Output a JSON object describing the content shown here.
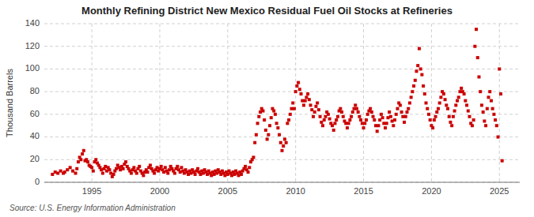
{
  "chart_data": {
    "type": "scatter",
    "title": "Monthly Refining District New Mexico Residual Fuel Oil Stocks at Refineries",
    "y_label": "Thousand Barrels",
    "source": "Source: U.S. Energy Information Administration",
    "color": "#cc0000",
    "marker": "square",
    "grid": true,
    "xlim": [
      1991.5,
      2026.5
    ],
    "ylim": [
      0,
      140
    ],
    "xticks": [
      1995,
      2000,
      2005,
      2010,
      2015,
      2020,
      2025
    ],
    "yticks": [
      0,
      20,
      40,
      60,
      80,
      100,
      120,
      140
    ],
    "x": [
      1992.1,
      1992.3,
      1992.5,
      1992.7,
      1992.9,
      1993.0,
      1993.2,
      1993.4,
      1993.6,
      1993.8,
      1993.9,
      1994.0,
      1994.1,
      1994.2,
      1994.3,
      1994.4,
      1994.5,
      1994.6,
      1994.7,
      1994.8,
      1994.9,
      1995.0,
      1995.1,
      1995.2,
      1995.3,
      1995.4,
      1995.5,
      1995.6,
      1995.7,
      1995.8,
      1995.9,
      1996.0,
      1996.1,
      1996.2,
      1996.3,
      1996.4,
      1996.5,
      1996.6,
      1996.7,
      1996.8,
      1996.9,
      1997.0,
      1997.1,
      1997.2,
      1997.3,
      1997.4,
      1997.5,
      1997.6,
      1997.7,
      1997.8,
      1997.9,
      1998.0,
      1998.1,
      1998.2,
      1998.3,
      1998.4,
      1998.5,
      1998.6,
      1998.7,
      1998.8,
      1998.9,
      1999.0,
      1999.1,
      1999.2,
      1999.3,
      1999.4,
      1999.5,
      1999.6,
      1999.7,
      1999.8,
      1999.9,
      2000.0,
      2000.1,
      2000.2,
      2000.3,
      2000.4,
      2000.5,
      2000.6,
      2000.7,
      2000.8,
      2000.9,
      2001.0,
      2001.1,
      2001.2,
      2001.3,
      2001.4,
      2001.5,
      2001.6,
      2001.7,
      2001.8,
      2001.9,
      2002.0,
      2002.1,
      2002.2,
      2002.3,
      2002.4,
      2002.5,
      2002.6,
      2002.7,
      2002.8,
      2002.9,
      2003.0,
      2003.1,
      2003.2,
      2003.3,
      2003.4,
      2003.5,
      2003.6,
      2003.7,
      2003.8,
      2003.9,
      2004.0,
      2004.1,
      2004.2,
      2004.3,
      2004.4,
      2004.5,
      2004.6,
      2004.7,
      2004.8,
      2004.9,
      2005.0,
      2005.1,
      2005.2,
      2005.3,
      2005.4,
      2005.5,
      2005.6,
      2005.7,
      2005.8,
      2005.9,
      2006.0,
      2006.1,
      2006.2,
      2006.3,
      2006.4,
      2006.5,
      2006.6,
      2006.7,
      2006.8,
      2006.9,
      2007.0,
      2007.1,
      2007.2,
      2007.3,
      2007.4,
      2007.5,
      2007.6,
      2007.7,
      2007.8,
      2007.9,
      2008.0,
      2008.1,
      2008.2,
      2008.3,
      2008.4,
      2008.5,
      2008.6,
      2008.7,
      2008.8,
      2008.9,
      2009.0,
      2009.1,
      2009.2,
      2009.3,
      2009.4,
      2009.5,
      2009.6,
      2009.7,
      2009.8,
      2009.9,
      2010.0,
      2010.1,
      2010.2,
      2010.3,
      2010.4,
      2010.5,
      2010.6,
      2010.7,
      2010.8,
      2010.9,
      2011.0,
      2011.1,
      2011.2,
      2011.3,
      2011.4,
      2011.5,
      2011.6,
      2011.7,
      2011.8,
      2011.9,
      2012.0,
      2012.1,
      2012.2,
      2012.3,
      2012.4,
      2012.5,
      2012.6,
      2012.7,
      2012.8,
      2012.9,
      2013.0,
      2013.1,
      2013.2,
      2013.3,
      2013.4,
      2013.5,
      2013.6,
      2013.7,
      2013.8,
      2013.9,
      2014.0,
      2014.1,
      2014.2,
      2014.3,
      2014.4,
      2014.5,
      2014.6,
      2014.7,
      2014.8,
      2014.9,
      2015.0,
      2015.1,
      2015.2,
      2015.3,
      2015.4,
      2015.5,
      2015.6,
      2015.7,
      2015.8,
      2015.9,
      2016.0,
      2016.1,
      2016.2,
      2016.3,
      2016.4,
      2016.5,
      2016.6,
      2016.7,
      2016.8,
      2016.9,
      2017.0,
      2017.1,
      2017.2,
      2017.3,
      2017.4,
      2017.5,
      2017.6,
      2017.7,
      2017.8,
      2017.9,
      2018.0,
      2018.1,
      2018.2,
      2018.3,
      2018.4,
      2018.5,
      2018.6,
      2018.7,
      2018.8,
      2018.9,
      2019.0,
      2019.1,
      2019.2,
      2019.3,
      2019.4,
      2019.5,
      2019.6,
      2019.7,
      2019.8,
      2019.9,
      2020.0,
      2020.1,
      2020.2,
      2020.3,
      2020.4,
      2020.5,
      2020.6,
      2020.7,
      2020.8,
      2020.9,
      2021.0,
      2021.1,
      2021.2,
      2021.3,
      2021.4,
      2021.5,
      2021.6,
      2021.7,
      2021.8,
      2021.9,
      2022.0,
      2022.1,
      2022.2,
      2022.3,
      2022.4,
      2022.5,
      2022.6,
      2022.7,
      2022.8,
      2022.9,
      2023.0,
      2023.1,
      2023.2,
      2023.3,
      2023.4,
      2023.5,
      2023.6,
      2023.7,
      2023.8,
      2023.9,
      2024.0,
      2024.1,
      2024.2,
      2024.3,
      2024.4,
      2024.5,
      2024.6,
      2024.7,
      2024.8,
      2024.9,
      2025.0,
      2025.1,
      2025.2
    ],
    "values": [
      7,
      9,
      8,
      10,
      8,
      9,
      11,
      13,
      10,
      8,
      12,
      18,
      22,
      20,
      25,
      28,
      19,
      20,
      18,
      15,
      14,
      13,
      10,
      18,
      20,
      17,
      15,
      13,
      11,
      8,
      12,
      14,
      10,
      13,
      11,
      8,
      5,
      7,
      10,
      12,
      15,
      13,
      11,
      14,
      12,
      16,
      18,
      14,
      12,
      10,
      8,
      11,
      13,
      10,
      8,
      12,
      14,
      10,
      8,
      6,
      9,
      11,
      9,
      13,
      15,
      12,
      10,
      8,
      11,
      13,
      10,
      12,
      14,
      11,
      9,
      13,
      10,
      8,
      11,
      14,
      12,
      10,
      8,
      12,
      14,
      11,
      9,
      13,
      10,
      8,
      11,
      9,
      7,
      10,
      8,
      11,
      9,
      7,
      10,
      12,
      9,
      7,
      10,
      8,
      11,
      9,
      7,
      10,
      8,
      6,
      9,
      7,
      10,
      8,
      11,
      9,
      7,
      10,
      8,
      6,
      9,
      7,
      10,
      8,
      6,
      9,
      7,
      10,
      8,
      6,
      9,
      7,
      10,
      12,
      14,
      11,
      9,
      13,
      18,
      20,
      22,
      35,
      42,
      52,
      58,
      62,
      65,
      63,
      55,
      46,
      38,
      42,
      50,
      57,
      65,
      63,
      60,
      52,
      48,
      42,
      35,
      28,
      32,
      38,
      35,
      52,
      55,
      60,
      65,
      70,
      65,
      80,
      85,
      88,
      82,
      78,
      72,
      68,
      72,
      75,
      78,
      73,
      68,
      64,
      58,
      62,
      67,
      70,
      64,
      58,
      53,
      50,
      55,
      58,
      62,
      60,
      56,
      52,
      50,
      46,
      52,
      55,
      58,
      63,
      65,
      62,
      58,
      54,
      52,
      48,
      52,
      55,
      58,
      62,
      65,
      68,
      65,
      62,
      58,
      55,
      52,
      48,
      52,
      55,
      60,
      63,
      65,
      62,
      58,
      55,
      50,
      45,
      50,
      55,
      60,
      57,
      52,
      48,
      52,
      57,
      62,
      58,
      54,
      50,
      55,
      60,
      65,
      70,
      68,
      62,
      58,
      53,
      58,
      62,
      65,
      70,
      75,
      80,
      85,
      90,
      98,
      103,
      118,
      100,
      95,
      85,
      78,
      70,
      65,
      60,
      55,
      50,
      48,
      55,
      58,
      62,
      65,
      70,
      75,
      80,
      78,
      73,
      68,
      65,
      58,
      53,
      50,
      58,
      63,
      68,
      72,
      75,
      80,
      83,
      80,
      78,
      72,
      68,
      63,
      58,
      52,
      50,
      55,
      120,
      135,
      110,
      93,
      80,
      68,
      62,
      54,
      50,
      65,
      75,
      80,
      72,
      65,
      60,
      55,
      50,
      40,
      100,
      78,
      19
    ]
  }
}
